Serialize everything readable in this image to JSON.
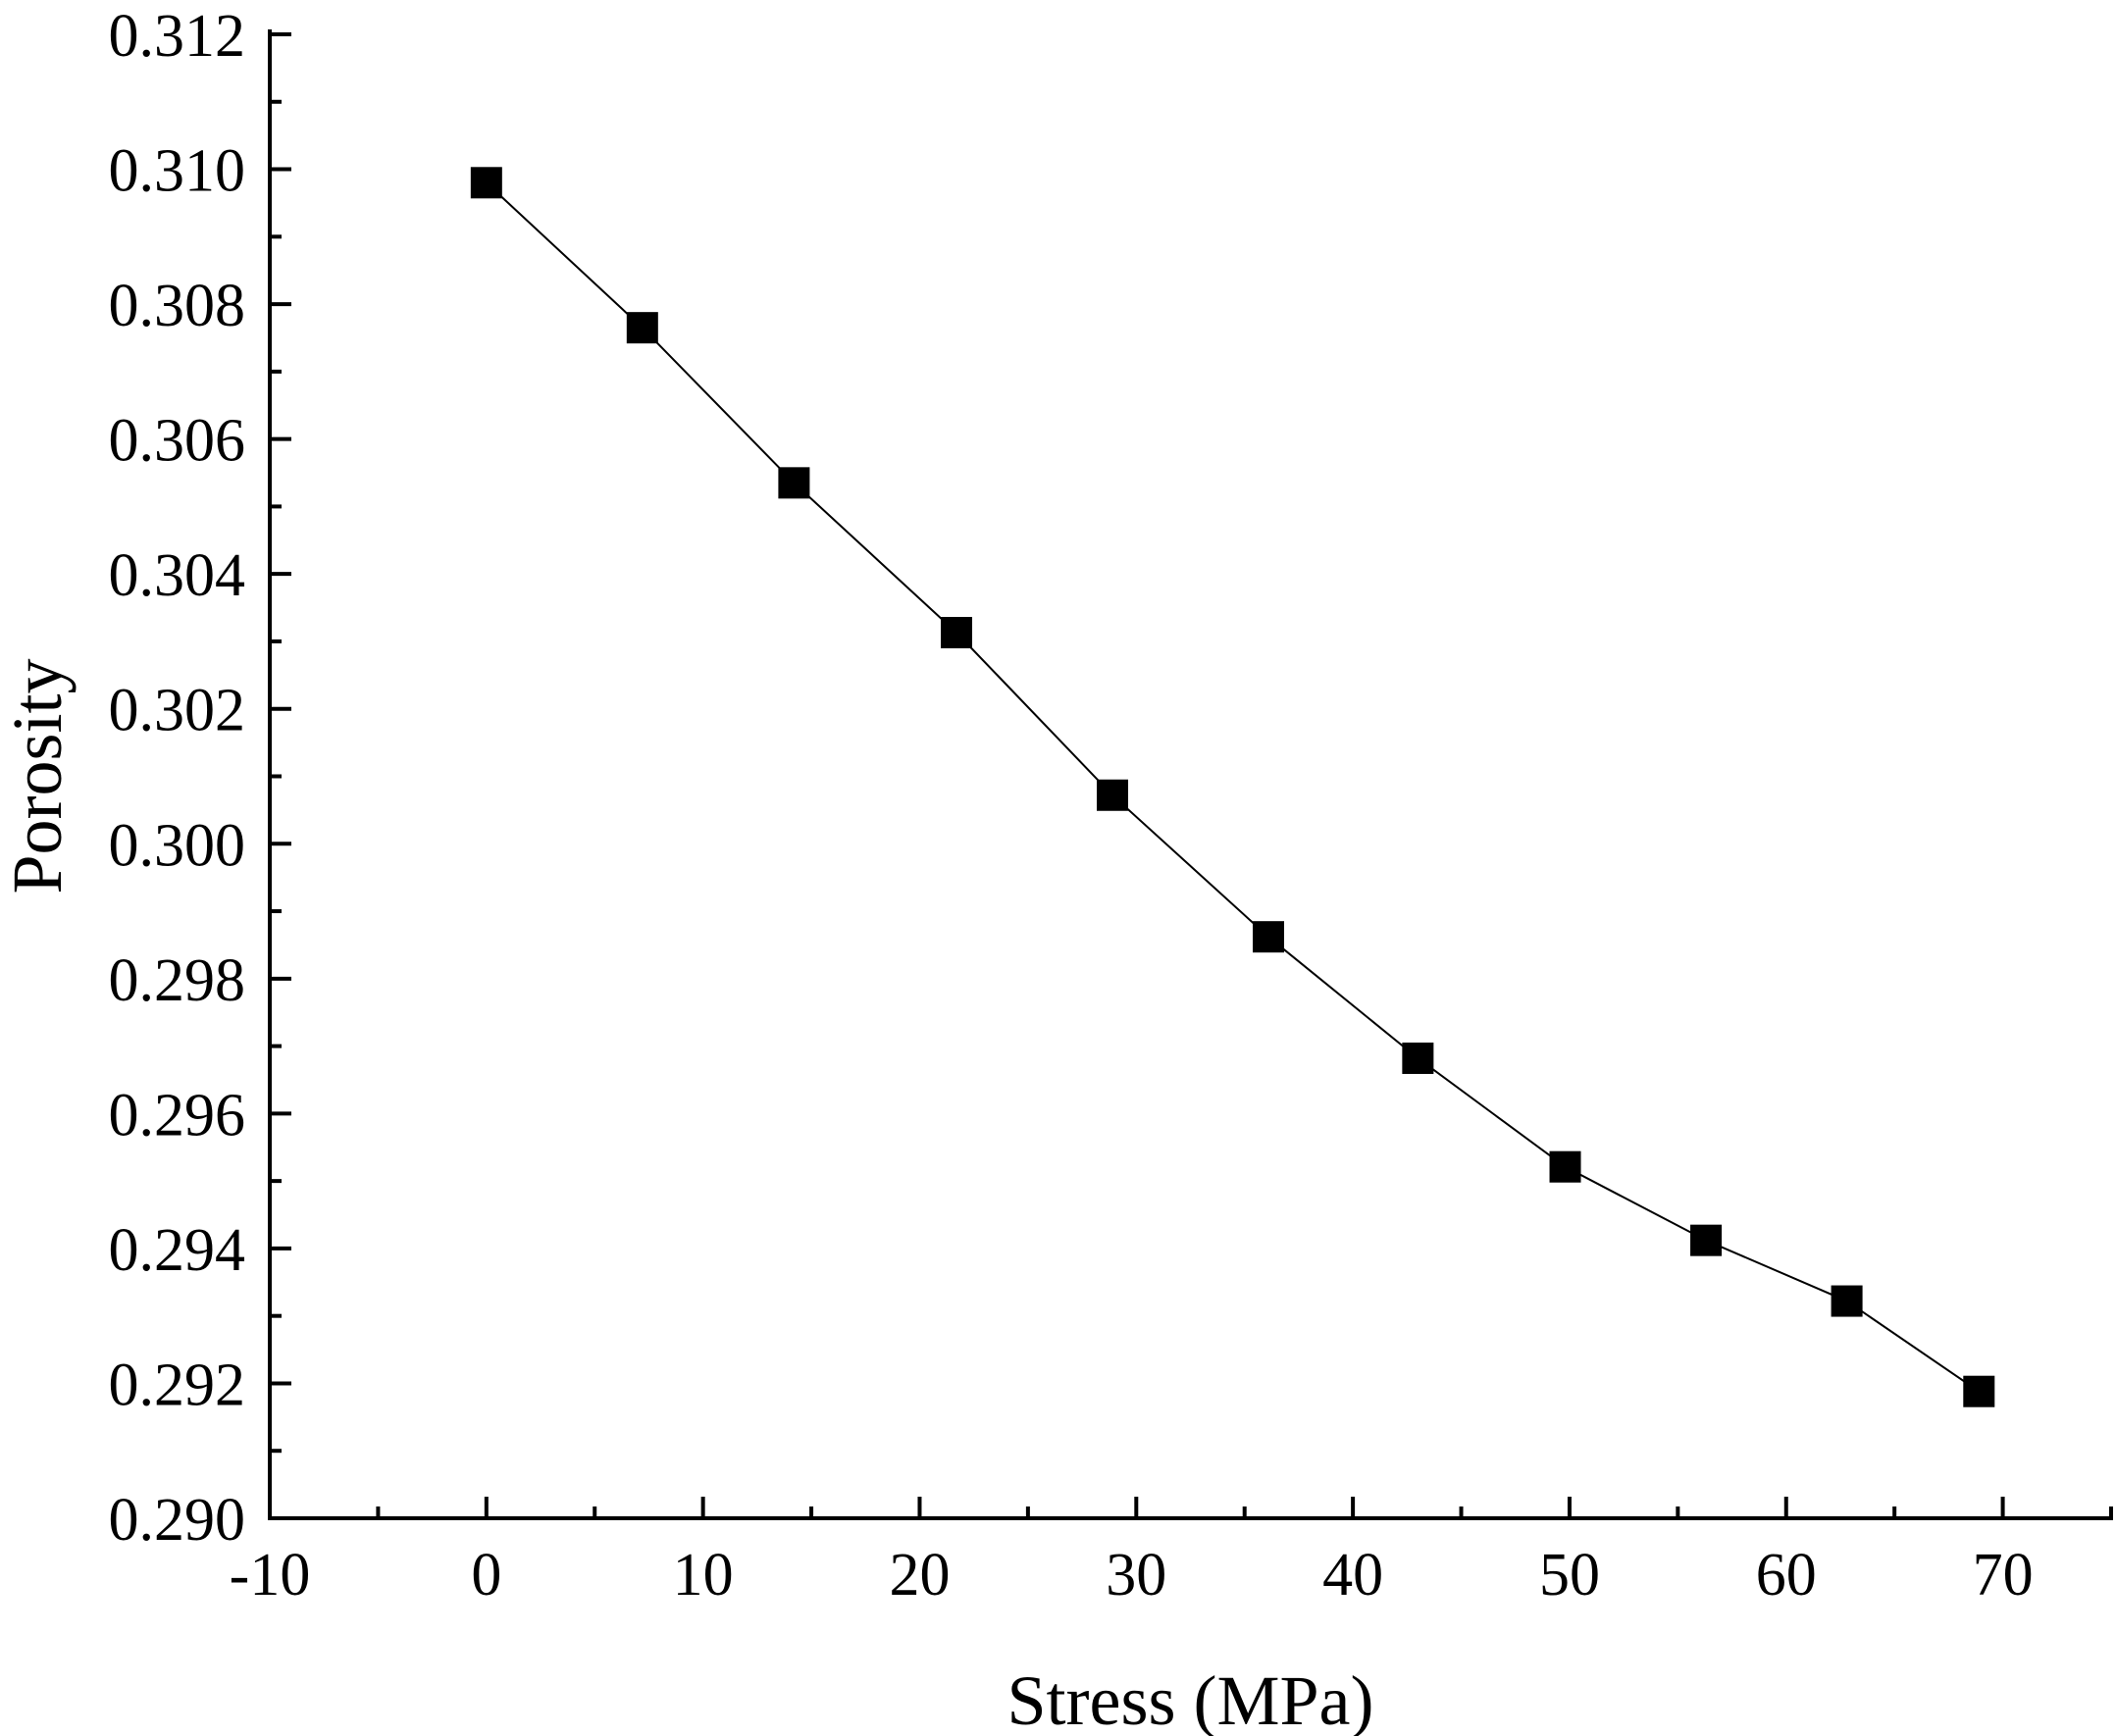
{
  "chart_data": {
    "type": "line",
    "title": "",
    "xlabel": "Stress (MPa)",
    "ylabel": "Porosity",
    "xlim": [
      -10,
      75
    ],
    "ylim": [
      0.29,
      0.312
    ],
    "x_major_ticks": [
      -10,
      0,
      10,
      20,
      30,
      40,
      50,
      60,
      70
    ],
    "x_tick_labels": [
      "-10",
      "0",
      "10",
      "20",
      "30",
      "40",
      "50",
      "60",
      "70"
    ],
    "y_major_ticks": [
      0.29,
      0.292,
      0.294,
      0.296,
      0.298,
      0.3,
      0.302,
      0.304,
      0.306,
      0.308,
      0.31,
      0.312
    ],
    "y_tick_labels": [
      "0.290",
      "0.292",
      "0.294",
      "0.296",
      "0.298",
      "0.300",
      "0.302",
      "0.304",
      "0.306",
      "0.308",
      "0.310",
      "0.312"
    ],
    "grid": false,
    "legend": "none",
    "series": [
      {
        "name": "Porosity",
        "marker": "square",
        "color": "#000000",
        "x": [
          0,
          7.2,
          14.2,
          21.7,
          28.9,
          36.1,
          43.0,
          49.8,
          56.3,
          62.8,
          68.9
        ],
        "y": [
          0.3098,
          0.30765,
          0.30535,
          0.30313,
          0.30072,
          0.29862,
          0.29682,
          0.29521,
          0.29412,
          0.29322,
          0.29188
        ]
      }
    ]
  }
}
